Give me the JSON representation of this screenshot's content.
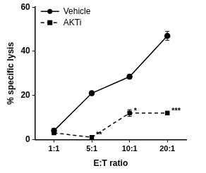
{
  "chart_data": {
    "type": "line",
    "categories": [
      "1:1",
      "5:1",
      "10:1",
      "20:1"
    ],
    "y_label": "% specific lysis",
    "x_label": "E:T ratio",
    "ylim": [
      0,
      60
    ],
    "yticks": [
      0,
      20,
      40,
      60
    ],
    "grid": false,
    "legend": "upper left",
    "series": [
      {
        "name": "Vehicle",
        "color": "#000000",
        "marker": "circle",
        "line_style": "solid",
        "values": [
          4,
          21,
          28.5,
          47
        ],
        "errors": [
          1,
          1,
          1,
          2
        ]
      },
      {
        "name": "AKTi",
        "color": "#000000",
        "marker": "square",
        "line_style": "dashed",
        "values": [
          3,
          1,
          12,
          12
        ],
        "errors": [
          0.5,
          0.5,
          1.5,
          0.5
        ]
      }
    ],
    "annotations": [
      {
        "text": "**",
        "series": "AKTi",
        "category": "5:1"
      },
      {
        "text": "*",
        "series": "AKTi",
        "category": "10:1"
      },
      {
        "text": "***",
        "series": "AKTi",
        "category": "20:1"
      }
    ]
  }
}
